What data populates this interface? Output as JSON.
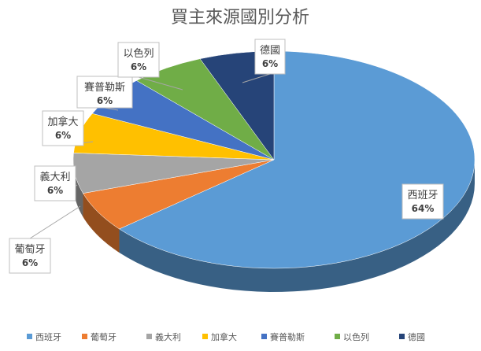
{
  "chart_data": {
    "type": "pie",
    "title": "買主來源國別分析",
    "categories": [
      "西班牙",
      "葡萄牙",
      "義大利",
      "加拿大",
      "賽普勒斯",
      "以色列",
      "德國"
    ],
    "values": [
      64,
      6,
      6,
      6,
      6,
      6,
      6
    ],
    "labels": [
      "64%",
      "6%",
      "6%",
      "6%",
      "6%",
      "6%",
      "6%"
    ],
    "colors": [
      "#5b9bd5",
      "#ed7d31",
      "#a5a5a5",
      "#ffc000",
      "#4472c4",
      "#70ad47",
      "#264478"
    ],
    "legend": "bottom",
    "style": "3d"
  }
}
